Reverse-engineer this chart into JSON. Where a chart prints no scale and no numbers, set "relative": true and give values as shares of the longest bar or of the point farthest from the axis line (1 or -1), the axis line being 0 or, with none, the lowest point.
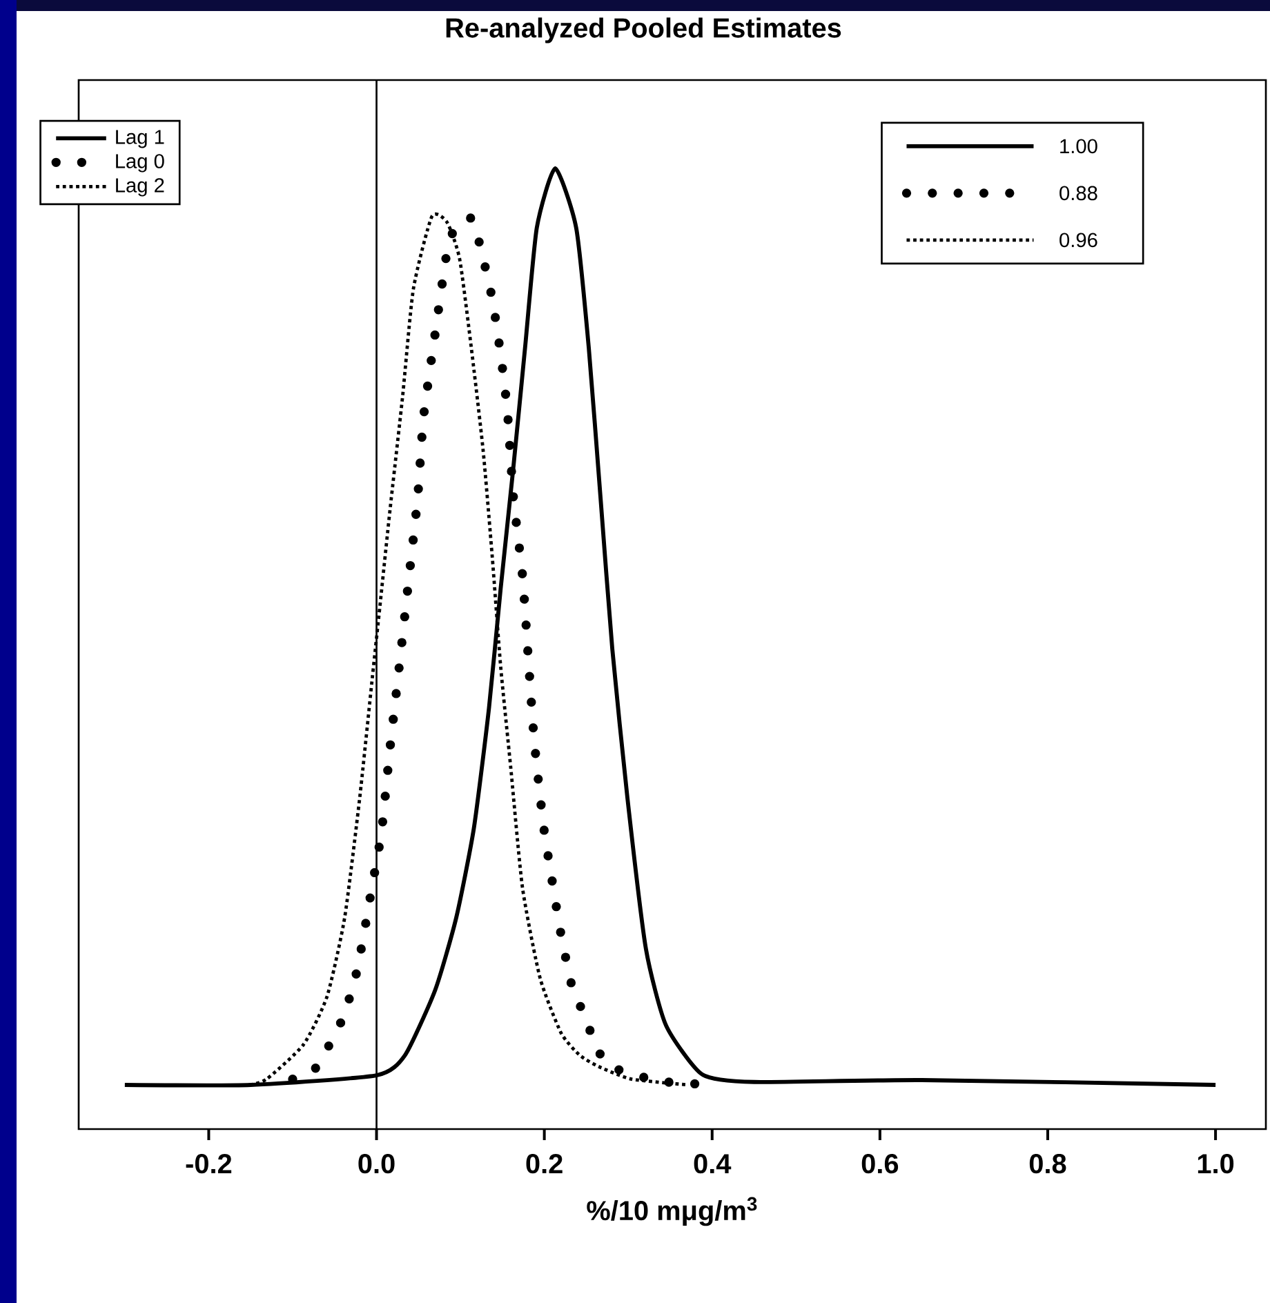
{
  "chart_data": {
    "type": "line",
    "title": "Re-analyzed Pooled Estimates",
    "xlabel": "%/10 mμg/m$^{3}$",
    "relative": true,
    "series": [
      {
        "name": "Lag 1",
        "color": "#000000",
        "line_style": "solid",
        "x": [
          -0.3,
          -0.15,
          0.0,
          0.034,
          0.07,
          0.095,
          0.116,
          0.134,
          0.148,
          0.163,
          0.177,
          0.191,
          0.213,
          0.238,
          0.253,
          0.267,
          0.281,
          0.299,
          0.321,
          0.345,
          0.388,
          0.45,
          0.65,
          1.0
        ],
        "values": [
          0.046,
          0.046,
          0.056,
          0.077,
          0.145,
          0.22,
          0.313,
          0.438,
          0.563,
          0.688,
          0.813,
          0.938,
          1.0,
          0.938,
          0.813,
          0.657,
          0.5,
          0.345,
          0.188,
          0.108,
          0.057,
          0.049,
          0.051,
          0.046
        ]
      },
      {
        "name": "Lag 0",
        "color": "#000000",
        "line_style": "dotted",
        "x": [
          -0.1,
          -0.073,
          -0.041,
          -0.023,
          -0.005,
          0.006,
          0.016,
          0.027,
          0.038,
          0.049,
          0.056,
          0.07,
          0.084,
          0.095,
          0.113,
          0.123,
          0.138,
          0.148,
          0.156,
          0.163,
          0.174,
          0.181,
          0.188,
          0.199,
          0.209,
          0.22,
          0.234,
          0.248,
          0.259,
          0.277,
          0.337,
          0.405
        ],
        "values": [
          0.052,
          0.063,
          0.114,
          0.166,
          0.254,
          0.31,
          0.396,
          0.481,
          0.569,
          0.657,
          0.741,
          0.829,
          0.913,
          0.941,
          0.948,
          0.921,
          0.864,
          0.806,
          0.747,
          0.659,
          0.576,
          0.489,
          0.404,
          0.316,
          0.26,
          0.202,
          0.145,
          0.119,
          0.092,
          0.066,
          0.05,
          0.046
        ]
      },
      {
        "name": "Lag 2",
        "color": "#000000",
        "line_style": "dotted",
        "x": [
          -0.151,
          -0.131,
          -0.087,
          -0.059,
          -0.038,
          -0.02,
          -0.005,
          0.004,
          0.016,
          0.031,
          0.044,
          0.066,
          0.084,
          0.099,
          0.113,
          0.127,
          0.138,
          0.148,
          0.16,
          0.174,
          0.195,
          0.22,
          0.242,
          0.265,
          0.304,
          0.372
        ],
        "values": [
          0.046,
          0.052,
          0.088,
          0.138,
          0.22,
          0.345,
          0.47,
          0.544,
          0.644,
          0.762,
          0.875,
          0.95,
          0.944,
          0.906,
          0.813,
          0.707,
          0.595,
          0.481,
          0.376,
          0.251,
          0.157,
          0.1,
          0.077,
          0.065,
          0.052,
          0.046
        ]
      }
    ],
    "xlim": [
      -0.355,
      1.06
    ],
    "xticks": [
      {
        "value": -0.2,
        "label": "-0.2"
      },
      {
        "value": 0.0,
        "label": "0.0"
      },
      {
        "value": 0.2,
        "label": "0.2"
      },
      {
        "value": 0.4,
        "label": "0.4"
      },
      {
        "value": 0.6,
        "label": "0.6"
      },
      {
        "value": 0.8,
        "label": "0.8"
      },
      {
        "value": 1.0,
        "label": "1.0"
      }
    ],
    "ref_lines": [
      {
        "axis": "x",
        "value": 0.0,
        "color": "#000000"
      }
    ],
    "legend": "top left",
    "annotations": [
      "1.00",
      "0.88",
      "0.96"
    ]
  }
}
